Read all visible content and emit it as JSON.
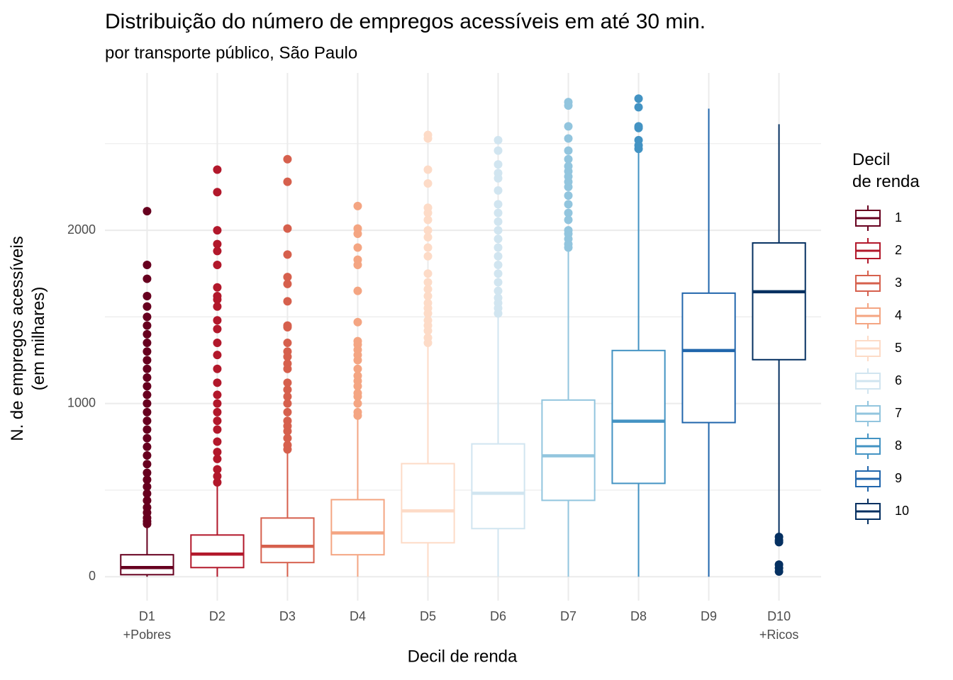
{
  "chart_data": {
    "type": "box",
    "title": "Distribuição do número de empregos acessíveis em até 30 min.",
    "subtitle": "por transporte público, São Paulo",
    "x_label": "Decil de renda",
    "y_label": "N. de empregos acessíveis\n(em milhares)",
    "legend_title": "Decil\nde renda",
    "categories": [
      "D1\n+Pobres",
      "D2",
      "D3",
      "D4",
      "D5",
      "D6",
      "D7",
      "D8",
      "D9",
      "D10\n+Ricos"
    ],
    "ylim": [
      -138,
      2908
    ],
    "yticks": [
      0,
      1000,
      2000
    ],
    "minor_grid": [
      500,
      1500,
      2500
    ],
    "grid": true,
    "boxes": [
      {
        "name": "1",
        "color": "#67001f",
        "min": 0,
        "q1": 12,
        "median": 53,
        "q3": 127,
        "max": 300,
        "outliers": [
          305,
          320,
          340,
          370,
          400,
          440,
          480,
          520,
          560,
          600,
          650,
          700,
          750,
          800,
          850,
          900,
          950,
          1000,
          1050,
          1100,
          1150,
          1200,
          1250,
          1300,
          1350,
          1400,
          1450,
          1500,
          1560,
          1620,
          1720,
          1800,
          2110
        ]
      },
      {
        "name": "2",
        "color": "#b2182b",
        "min": 0,
        "q1": 53,
        "median": 131,
        "q3": 241,
        "max": 530,
        "outliers": [
          545,
          580,
          620,
          680,
          720,
          780,
          850,
          900,
          950,
          1000,
          1050,
          1120,
          1200,
          1280,
          1350,
          1430,
          1480,
          1560,
          1600,
          1620,
          1670,
          1800,
          1880,
          1920,
          2000,
          2220,
          2350
        ]
      },
      {
        "name": "3",
        "color": "#d6604d",
        "min": 0,
        "q1": 82,
        "median": 176,
        "q3": 339,
        "max": 725,
        "outliers": [
          735,
          760,
          800,
          840,
          870,
          900,
          950,
          1000,
          1040,
          1080,
          1120,
          1200,
          1230,
          1270,
          1300,
          1350,
          1440,
          1450,
          1590,
          1690,
          1730,
          1860,
          2010,
          2280,
          2410
        ]
      },
      {
        "name": "4",
        "color": "#f4a582",
        "min": 0,
        "q1": 127,
        "median": 253,
        "q3": 445,
        "max": 920,
        "outliers": [
          930,
          950,
          1000,
          1040,
          1060,
          1100,
          1130,
          1160,
          1200,
          1250,
          1280,
          1310,
          1340,
          1360,
          1470,
          1650,
          1800,
          1830,
          1900,
          1980,
          2010,
          2140
        ]
      },
      {
        "name": "5",
        "color": "#fddbc7",
        "min": 0,
        "q1": 196,
        "median": 380,
        "q3": 653,
        "max": 1340,
        "outliers": [
          1350,
          1380,
          1420,
          1450,
          1480,
          1520,
          1550,
          1580,
          1620,
          1660,
          1700,
          1750,
          1850,
          1900,
          1960,
          2000,
          2060,
          2100,
          2130,
          2270,
          2350,
          2530,
          2550
        ]
      },
      {
        "name": "6",
        "color": "#d1e5f0",
        "min": 0,
        "q1": 278,
        "median": 482,
        "q3": 767,
        "max": 1500,
        "outliers": [
          1520,
          1550,
          1580,
          1610,
          1650,
          1700,
          1750,
          1800,
          1850,
          1900,
          1950,
          2000,
          2050,
          2100,
          2150,
          2230,
          2300,
          2330,
          2380,
          2460,
          2520
        ]
      },
      {
        "name": "7",
        "color": "#92c5de",
        "min": 0,
        "q1": 441,
        "median": 698,
        "q3": 1020,
        "max": 1880,
        "outliers": [
          1900,
          1920,
          1950,
          1980,
          2000,
          2060,
          2100,
          2150,
          2200,
          2250,
          2280,
          2310,
          2340,
          2370,
          2410,
          2460,
          2530,
          2600,
          2720,
          2740
        ]
      },
      {
        "name": "8",
        "color": "#4393c3",
        "min": 0,
        "q1": 539,
        "median": 898,
        "q3": 1306,
        "max": 2450,
        "outliers": [
          2470,
          2490,
          2520,
          2590,
          2600,
          2710,
          2760
        ]
      },
      {
        "name": "9",
        "color": "#2166ac",
        "min": 0,
        "q1": 890,
        "median": 1306,
        "q3": 1637,
        "max": 2702,
        "outliers": []
      },
      {
        "name": "10",
        "color": "#053061",
        "min": 245,
        "q1": 1253,
        "median": 1645,
        "q3": 1927,
        "max": 2612,
        "outliers": [
          30,
          50,
          70,
          200,
          210,
          230
        ]
      }
    ]
  }
}
